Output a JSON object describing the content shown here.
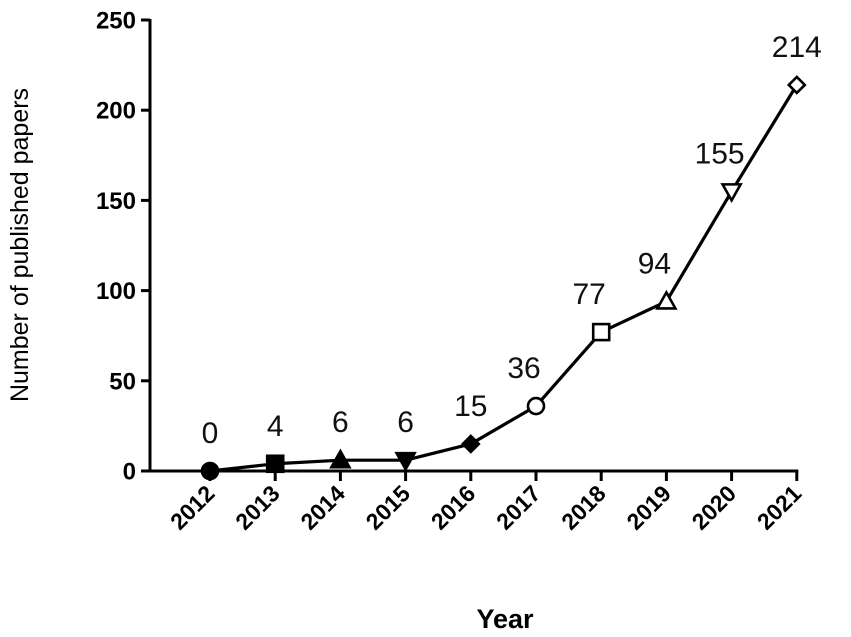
{
  "chart_data": {
    "type": "line",
    "title": "",
    "xlabel": "Year",
    "ylabel": "Number of published papers",
    "categories": [
      "2012",
      "2013",
      "2014",
      "2015",
      "2016",
      "2017",
      "2018",
      "2019",
      "2020",
      "2021"
    ],
    "series": [
      {
        "values": [
          0,
          4,
          6,
          6,
          15,
          36,
          77,
          94,
          155,
          214
        ],
        "markers": [
          "circle-filled",
          "square-filled",
          "triangle-up-filled",
          "triangle-down-filled",
          "diamond-filled",
          "circle-open",
          "square-open",
          "triangle-up-open",
          "triangle-down-open",
          "diamond-open"
        ]
      }
    ],
    "data_labels": [
      "0",
      "4",
      "6",
      "6",
      "15",
      "36",
      "77",
      "94",
      "155",
      "214"
    ],
    "ylim": [
      0,
      250
    ],
    "yticks": [
      "0",
      "50",
      "100",
      "150",
      "200",
      "250"
    ],
    "grid": false,
    "line_color": "#000000"
  }
}
